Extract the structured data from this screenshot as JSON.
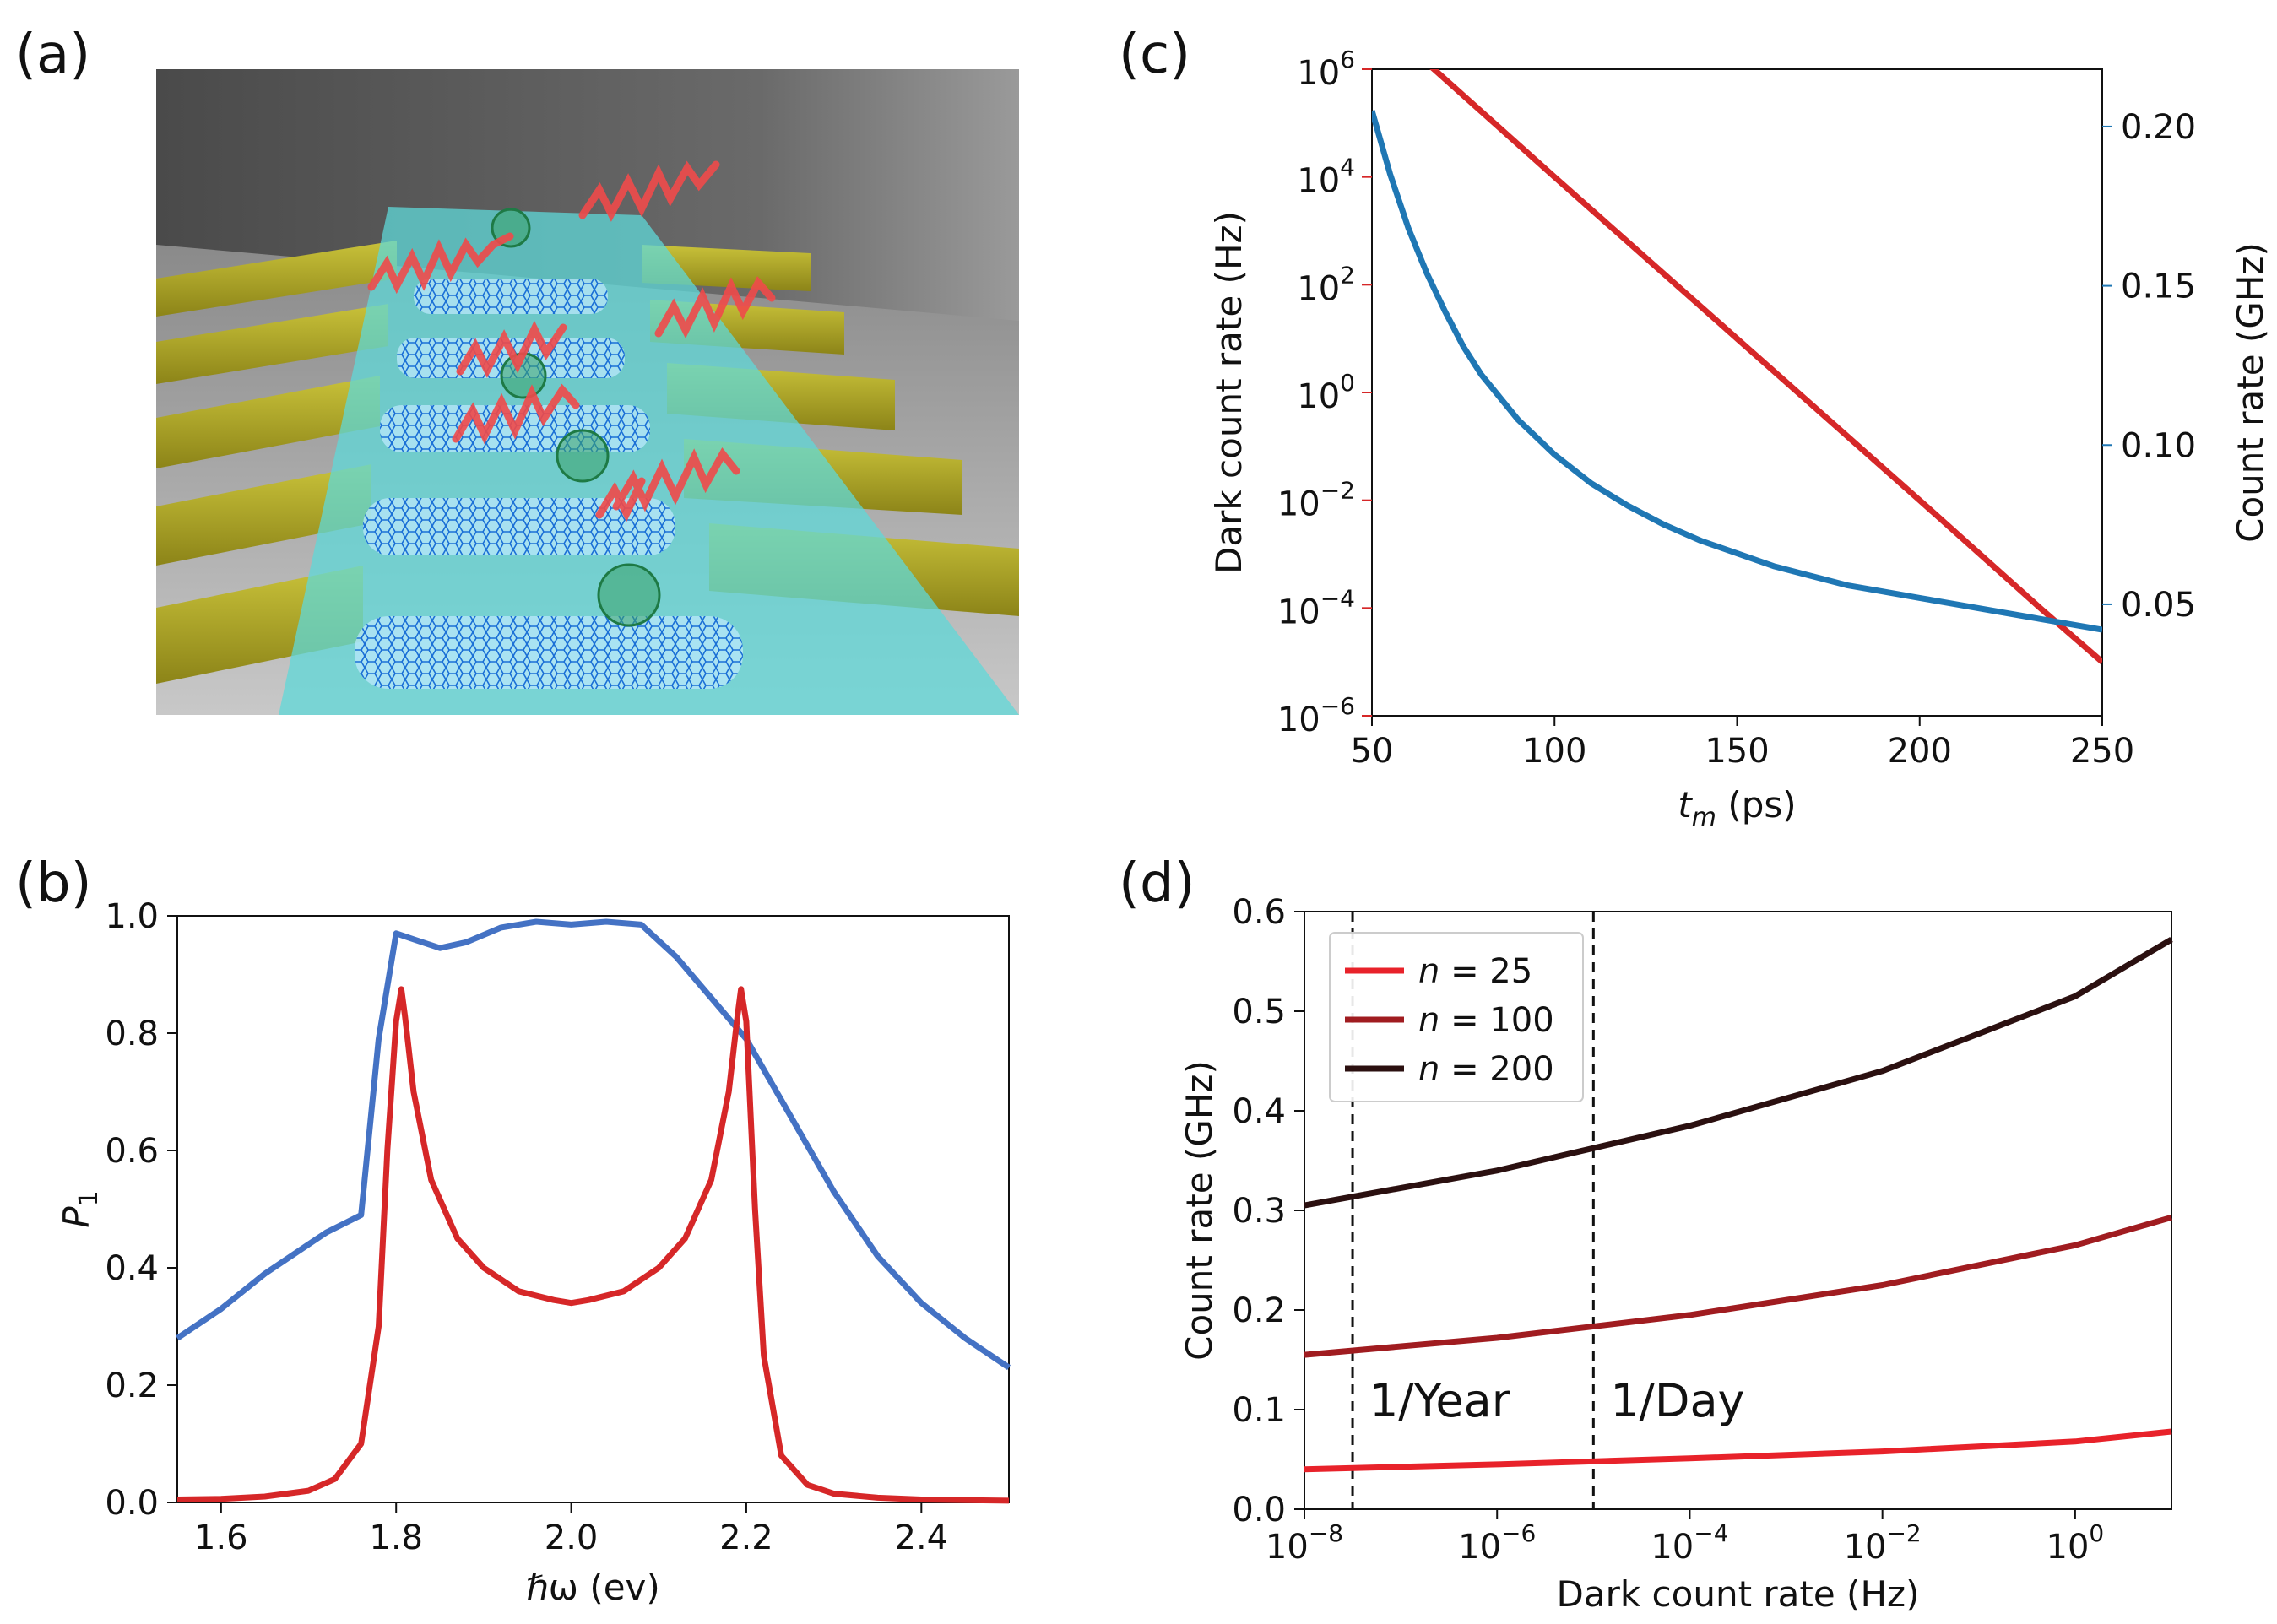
{
  "panels": {
    "a": "(a)",
    "b": "(b)",
    "c": "(c)",
    "d": "(d)"
  },
  "colors": {
    "red": "#d62728",
    "blue": "#1f77b4",
    "blue_b": "#4472c4",
    "n25": "#e8222a",
    "n100": "#a01c20",
    "n200": "#2b1010"
  },
  "chart_data": [
    {
      "panel": "b",
      "type": "line",
      "xlabel": "ℏω (ev)",
      "ylabel": "P",
      "ylabel_sub": "1",
      "xlim": [
        1.55,
        2.5
      ],
      "ylim": [
        0.0,
        1.0
      ],
      "xticks": [
        "1.6",
        "1.8",
        "2.0",
        "2.2",
        "2.4"
      ],
      "xtick_values": [
        1.6,
        1.8,
        2.0,
        2.2,
        2.4
      ],
      "yticks": [
        "0.0",
        "0.2",
        "0.4",
        "0.6",
        "0.8",
        "1.0"
      ],
      "ytick_values": [
        0.0,
        0.2,
        0.4,
        0.6,
        0.8,
        1.0
      ],
      "series": [
        {
          "color_key": "blue_b",
          "x": [
            1.55,
            1.6,
            1.65,
            1.7,
            1.72,
            1.76,
            1.78,
            1.8,
            1.82,
            1.85,
            1.88,
            1.92,
            1.96,
            2.0,
            2.04,
            2.08,
            2.12,
            2.16,
            2.2,
            2.25,
            2.3,
            2.35,
            2.4,
            2.45,
            2.5
          ],
          "y": [
            0.28,
            0.33,
            0.39,
            0.44,
            0.46,
            0.49,
            0.79,
            0.97,
            0.96,
            0.945,
            0.955,
            0.98,
            0.99,
            0.985,
            0.99,
            0.985,
            0.93,
            0.86,
            0.79,
            0.66,
            0.53,
            0.42,
            0.34,
            0.28,
            0.23
          ]
        },
        {
          "color_key": "red",
          "x": [
            1.55,
            1.6,
            1.65,
            1.7,
            1.73,
            1.76,
            1.78,
            1.79,
            1.8,
            1.806,
            1.81,
            1.82,
            1.84,
            1.87,
            1.9,
            1.94,
            1.98,
            2.0,
            2.02,
            2.06,
            2.1,
            2.13,
            2.16,
            2.18,
            2.19,
            2.194,
            2.2,
            2.21,
            2.22,
            2.24,
            2.27,
            2.3,
            2.35,
            2.4,
            2.45,
            2.5
          ],
          "y": [
            0.005,
            0.006,
            0.01,
            0.02,
            0.04,
            0.1,
            0.3,
            0.6,
            0.82,
            0.875,
            0.83,
            0.7,
            0.55,
            0.45,
            0.4,
            0.36,
            0.345,
            0.34,
            0.345,
            0.36,
            0.4,
            0.45,
            0.55,
            0.7,
            0.83,
            0.875,
            0.82,
            0.5,
            0.25,
            0.08,
            0.03,
            0.015,
            0.008,
            0.005,
            0.004,
            0.003
          ]
        }
      ]
    },
    {
      "panel": "c",
      "type": "line",
      "xlabel": "t",
      "xlabel_sub": "m",
      "xlabel_unit": " (ps)",
      "ylabel_left": "Dark count rate (Hz)",
      "ylabel_right": "Count rate (GHz)",
      "xlim": [
        50,
        250
      ],
      "ylim_left_log10": [
        -6,
        6
      ],
      "ylim_right": [
        0.015,
        0.218
      ],
      "xticks": [
        "50",
        "100",
        "150",
        "200",
        "250"
      ],
      "xtick_values": [
        50,
        100,
        150,
        200,
        250
      ],
      "yticks_left_base": "10",
      "yticks_left_exp": [
        "−6",
        "−4",
        "−2",
        "0",
        "2",
        "4",
        "6"
      ],
      "ytick_left_values_log10": [
        -6,
        -4,
        -2,
        0,
        2,
        4,
        6
      ],
      "yticks_right": [
        "0.05",
        "0.10",
        "0.15",
        "0.20"
      ],
      "ytick_right_values": [
        0.05,
        0.1,
        0.15,
        0.2
      ],
      "series": [
        {
          "name": "Dark count rate (Hz)",
          "axis": "left",
          "color_key": "red",
          "x": [
            50,
            67,
            100,
            150,
            200,
            233,
            250
          ],
          "log10_y": [
            7.0,
            6.0,
            4.0,
            1.0,
            -2.0,
            -4.0,
            -5.0
          ]
        },
        {
          "name": "Count rate (GHz)",
          "axis": "right",
          "color_key": "blue",
          "x": [
            50,
            55,
            60,
            65,
            70,
            75,
            80,
            90,
            100,
            110,
            120,
            130,
            140,
            150,
            160,
            170,
            180,
            190,
            200,
            210,
            220,
            230,
            240,
            250
          ],
          "y": [
            0.205,
            0.185,
            0.168,
            0.154,
            0.142,
            0.131,
            0.122,
            0.108,
            0.097,
            0.088,
            0.081,
            0.075,
            0.07,
            0.066,
            0.062,
            0.059,
            0.056,
            0.054,
            0.052,
            0.05,
            0.048,
            0.046,
            0.044,
            0.042
          ]
        }
      ]
    },
    {
      "panel": "d",
      "type": "line",
      "xlabel": "Dark count rate (Hz)",
      "ylabel": "Count rate (GHz)",
      "xlim_log10": [
        -8,
        1
      ],
      "ylim": [
        0.0,
        0.6
      ],
      "xticks_base": "10",
      "xticks_exp": [
        "−8",
        "−6",
        "−4",
        "−2",
        "0"
      ],
      "xtick_values_log10": [
        -8,
        -6,
        -4,
        -2,
        0
      ],
      "yticks": [
        "0.0",
        "0.1",
        "0.2",
        "0.3",
        "0.4",
        "0.5",
        "0.6"
      ],
      "ytick_values": [
        0.0,
        0.1,
        0.2,
        0.3,
        0.4,
        0.5,
        0.6
      ],
      "vlines": [
        {
          "log10_x": -7.5,
          "label": "1/Year"
        },
        {
          "log10_x": -5.0,
          "label": "1/Day"
        }
      ],
      "series": [
        {
          "name_var": "n",
          "name_rest": " = 25",
          "color_key": "n25",
          "log10_x": [
            -8,
            -6,
            -4,
            -2,
            0,
            1
          ],
          "y": [
            0.04,
            0.045,
            0.051,
            0.058,
            0.068,
            0.078
          ]
        },
        {
          "name_var": "n",
          "name_rest": " = 100",
          "color_key": "n100",
          "log10_x": [
            -8,
            -6,
            -4,
            -2,
            0,
            1
          ],
          "y": [
            0.155,
            0.172,
            0.195,
            0.225,
            0.265,
            0.293
          ]
        },
        {
          "name_var": "n",
          "name_rest": " = 200",
          "color_key": "n200",
          "log10_x": [
            -8,
            -6,
            -4,
            -2,
            0,
            1
          ],
          "y": [
            0.305,
            0.34,
            0.385,
            0.44,
            0.515,
            0.572
          ]
        }
      ]
    }
  ]
}
